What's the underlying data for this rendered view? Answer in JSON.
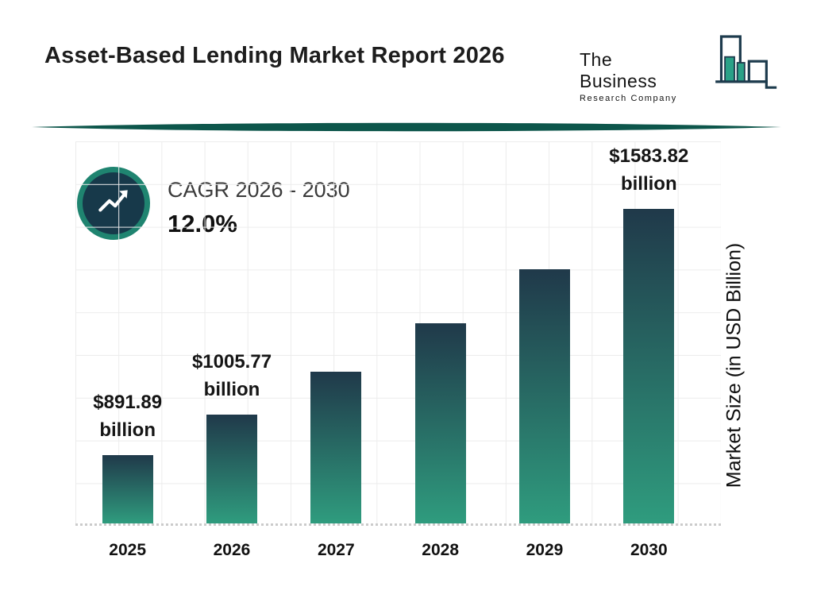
{
  "header": {
    "title": "Asset-Based Lending Market Report 2026",
    "logo": {
      "line1": "The Business",
      "line2": "Research Company",
      "icon": "bar-chart-logo-icon"
    }
  },
  "cagr": {
    "label": "CAGR 2026 - 2030",
    "value": "12.0%",
    "icon": "trending-up-arrow-icon"
  },
  "chart_data": {
    "type": "bar",
    "title": "Asset-Based Lending Market Report 2026",
    "categories": [
      "2025",
      "2026",
      "2027",
      "2028",
      "2029",
      "2030"
    ],
    "values": [
      891.89,
      1005.77,
      1126.46,
      1261.64,
      1413.04,
      1583.82
    ],
    "value_labels": [
      "$891.89 billion",
      "$1005.77 billion",
      "",
      "",
      "",
      "$1583.82 billion"
    ],
    "xlabel": "",
    "ylabel": "Market Size (in USD Billion)",
    "ylim": [
      700,
      1780
    ],
    "grid": true,
    "legend": "none",
    "bar_gradient": [
      "#20394a",
      "#2f9c7e"
    ]
  },
  "colors": {
    "accent_teal": "#1f8470",
    "divider_teal": "#0d564b",
    "bar_top": "#20394a",
    "bar_bottom": "#2f9c7e",
    "title_text": "#1d1d1d",
    "grid_line": "#ececec",
    "axis_dotted": "#cbcbcb"
  }
}
